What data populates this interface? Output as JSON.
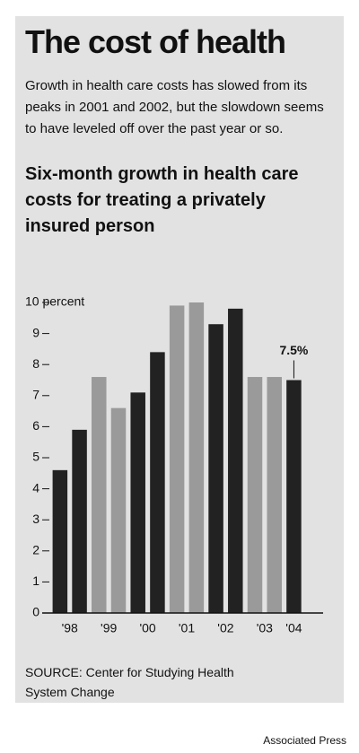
{
  "chart_data": {
    "type": "bar",
    "title": "The cost of health",
    "subtitle": "Growth in health care costs has slowed from its peaks in 2001 and 2002, but the slowdown seems to have leveled off over the past year or so.",
    "chart_title": "Six-month growth in health care costs for treating a privately insured person",
    "categories": [
      "'98",
      "'99",
      "'00",
      "'01",
      "'02",
      "'03",
      "'04"
    ],
    "bar_colors": [
      "#222222",
      "#9a9a9a",
      "#222222",
      "#9a9a9a",
      "#222222",
      "#9a9a9a",
      "#222222"
    ],
    "series": [
      {
        "values": [
          4.6,
          7.6,
          7.1,
          9.9,
          9.3,
          7.6,
          7.5
        ],
        "value_labels": [
          null,
          null,
          null,
          null,
          null,
          null,
          "7.5%"
        ]
      },
      {
        "values": [
          5.9,
          6.6,
          8.4,
          10.0,
          9.8,
          7.6,
          null
        ]
      }
    ],
    "ylim": [
      0,
      10
    ],
    "yticks": [
      0,
      1,
      2,
      3,
      4,
      5,
      6,
      7,
      8,
      9,
      {
        "value": 10,
        "label": "10 percent"
      }
    ],
    "source": "SOURCE: Center for Studying Health System Change",
    "credit": "Associated Press"
  }
}
